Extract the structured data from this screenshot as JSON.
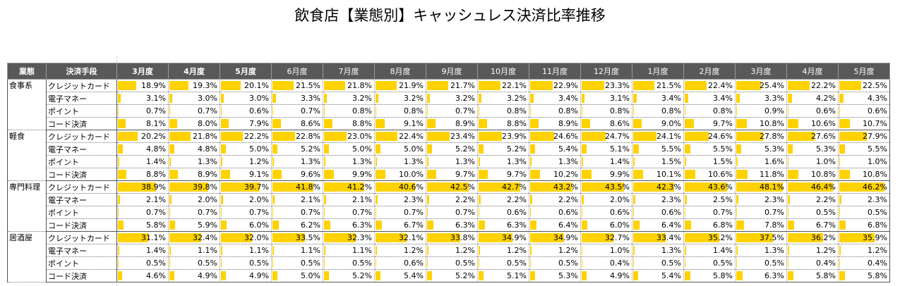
{
  "title": "飲食店【業態別】キャッシュレス決済比率推移",
  "header": {
    "category": "業態",
    "method": "決済手段"
  },
  "chart_data": {
    "type": "table",
    "title": "飲食店【業態別】キャッシュレス決済比率推移",
    "bar_color": "#ffd200",
    "max_value": 50,
    "months": [
      "3月度",
      "4月度",
      "5月度",
      "6月度",
      "7月度",
      "8月度",
      "9月度",
      "10月度",
      "11月度",
      "12月度",
      "1月度",
      "2月度",
      "3月度",
      "4月度",
      "5月度"
    ],
    "categories": [
      {
        "name": "食事系",
        "rows": [
          {
            "method": "クレジットカード",
            "values": [
              "18.9%",
              "19.3%",
              "20.1%",
              "21.5%",
              "21.8%",
              "21.9%",
              "21.7%",
              "22.1%",
              "22.9%",
              "23.3%",
              "21.5%",
              "22.4%",
              "25.4%",
              "22.2%",
              "22.5%"
            ]
          },
          {
            "method": "電子マネー",
            "values": [
              "3.1%",
              "3.0%",
              "3.0%",
              "3.3%",
              "3.2%",
              "3.2%",
              "3.2%",
              "3.2%",
              "3.4%",
              "3.1%",
              "3.4%",
              "3.4%",
              "3.3%",
              "4.2%",
              "4.3%"
            ]
          },
          {
            "method": "ポイント",
            "values": [
              "0.7%",
              "0.7%",
              "0.6%",
              "0.7%",
              "0.8%",
              "0.8%",
              "0.7%",
              "0.8%",
              "0.8%",
              "0.8%",
              "0.8%",
              "0.8%",
              "0.9%",
              "0.6%",
              "0.6%"
            ]
          },
          {
            "method": "コード決済",
            "values": [
              "8.1%",
              "8.0%",
              "7.9%",
              "8.6%",
              "8.8%",
              "9.1%",
              "8.9%",
              "8.8%",
              "8.9%",
              "8.6%",
              "9.0%",
              "9.7%",
              "10.8%",
              "10.6%",
              "10.7%"
            ]
          }
        ]
      },
      {
        "name": "軽食",
        "rows": [
          {
            "method": "クレジットカード",
            "values": [
              "20.2%",
              "21.8%",
              "22.2%",
              "22.8%",
              "23.0%",
              "22.4%",
              "23.4%",
              "23.9%",
              "24.6%",
              "24.7%",
              "24.1%",
              "24.6%",
              "27.8%",
              "27.6%",
              "27.9%"
            ]
          },
          {
            "method": "電子マネー",
            "values": [
              "4.8%",
              "4.8%",
              "5.0%",
              "5.2%",
              "5.0%",
              "5.0%",
              "5.2%",
              "5.2%",
              "5.4%",
              "5.1%",
              "5.5%",
              "5.5%",
              "5.3%",
              "5.3%",
              "5.5%"
            ]
          },
          {
            "method": "ポイント",
            "values": [
              "1.4%",
              "1.3%",
              "1.2%",
              "1.3%",
              "1.3%",
              "1.3%",
              "1.3%",
              "1.3%",
              "1.3%",
              "1.4%",
              "1.5%",
              "1.5%",
              "1.6%",
              "1.0%",
              "1.0%"
            ]
          },
          {
            "method": "コード決済",
            "values": [
              "8.8%",
              "8.9%",
              "9.1%",
              "9.6%",
              "9.9%",
              "10.0%",
              "9.7%",
              "9.7%",
              "10.2%",
              "9.9%",
              "10.1%",
              "10.6%",
              "11.8%",
              "10.8%",
              "10.8%"
            ]
          }
        ]
      },
      {
        "name": "専門料理",
        "rows": [
          {
            "method": "クレジットカード",
            "values": [
              "38.9%",
              "39.8%",
              "39.7%",
              "41.8%",
              "41.2%",
              "40.6%",
              "42.5%",
              "42.7%",
              "43.2%",
              "43.5%",
              "42.3%",
              "43.6%",
              "48.1%",
              "46.4%",
              "46.2%"
            ]
          },
          {
            "method": "電子マネー",
            "values": [
              "2.1%",
              "2.0%",
              "2.0%",
              "2.1%",
              "2.1%",
              "2.3%",
              "2.2%",
              "2.2%",
              "2.2%",
              "2.0%",
              "2.3%",
              "2.5%",
              "2.3%",
              "2.2%",
              "2.3%"
            ]
          },
          {
            "method": "ポイント",
            "values": [
              "0.7%",
              "0.7%",
              "0.7%",
              "0.7%",
              "0.7%",
              "0.7%",
              "0.7%",
              "0.6%",
              "0.6%",
              "0.6%",
              "0.6%",
              "0.7%",
              "0.7%",
              "0.5%",
              "0.5%"
            ]
          },
          {
            "method": "コード決済",
            "values": [
              "5.8%",
              "5.9%",
              "6.0%",
              "6.2%",
              "6.3%",
              "6.7%",
              "6.3%",
              "6.3%",
              "6.4%",
              "6.0%",
              "6.4%",
              "6.8%",
              "7.8%",
              "6.7%",
              "6.8%"
            ]
          }
        ]
      },
      {
        "name": "居酒屋",
        "rows": [
          {
            "method": "クレジットカード",
            "values": [
              "31.1%",
              "32.4%",
              "32.0%",
              "33.5%",
              "32.3%",
              "32.1%",
              "33.8%",
              "34.9%",
              "34.9%",
              "32.7%",
              "33.4%",
              "35.2%",
              "37.5%",
              "36.2%",
              "35.9%"
            ]
          },
          {
            "method": "電子マネー",
            "values": [
              "1.4%",
              "1.1%",
              "1.1%",
              "1.1%",
              "1.1%",
              "1.2%",
              "1.2%",
              "1.2%",
              "1.2%",
              "1.0%",
              "1.3%",
              "1.4%",
              "1.3%",
              "1.2%",
              "1.2%"
            ]
          },
          {
            "method": "ポイント",
            "values": [
              "0.5%",
              "0.5%",
              "0.5%",
              "0.5%",
              "0.5%",
              "0.6%",
              "0.5%",
              "0.5%",
              "0.5%",
              "0.4%",
              "0.5%",
              "0.5%",
              "0.5%",
              "0.4%",
              "0.4%"
            ]
          },
          {
            "method": "コード決済",
            "values": [
              "4.6%",
              "4.9%",
              "4.9%",
              "5.0%",
              "5.2%",
              "5.4%",
              "5.2%",
              "5.1%",
              "5.3%",
              "4.9%",
              "5.4%",
              "5.8%",
              "6.3%",
              "5.8%",
              "5.8%"
            ]
          }
        ]
      }
    ]
  }
}
